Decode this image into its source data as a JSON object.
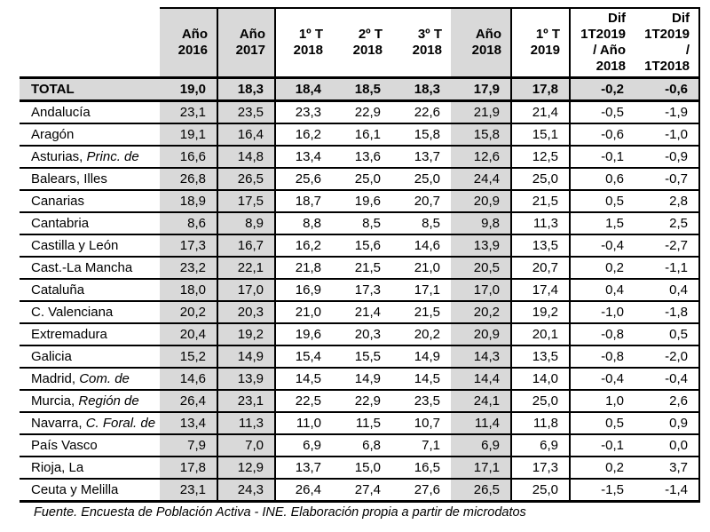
{
  "colors": {
    "shade": "#d9d9d9",
    "border": "#000000",
    "background": "#ffffff"
  },
  "header": {
    "region": "",
    "y2016": "Año\n2016",
    "y2017": "Año\n2017",
    "q1_2018": "1º T\n2018",
    "q2_2018": "2º T\n2018",
    "q3_2018": "3º T\n2018",
    "y2018": "Año\n2018",
    "q1_2019": "1º T\n2019",
    "dif_vs_y2018": "Dif\n1T2019\n/ Año\n2018",
    "dif_vs_q12018": "Dif\n1T2019\n/\n1T2018"
  },
  "chart_data": {
    "type": "table",
    "columns": [
      "",
      "Año 2016",
      "Año 2017",
      "1º T 2018",
      "2º T 2018",
      "3º T 2018",
      "Año 2018",
      "1º T 2019",
      "Dif 1T2019 / Año 2018",
      "Dif 1T2019 / 1T2018"
    ],
    "shaded_columns": [
      "Año 2016",
      "Año 2017",
      "Año 2018"
    ],
    "total_row": {
      "label": "TOTAL",
      "values": [
        "19,0",
        "18,3",
        "18,4",
        "18,5",
        "18,3",
        "17,9",
        "17,8",
        "-0,2",
        "-0,6"
      ]
    },
    "rows": [
      {
        "region": "Andalucía",
        "region_italic": "",
        "values": [
          "23,1",
          "23,5",
          "23,3",
          "22,9",
          "22,6",
          "21,9",
          "21,4",
          "-0,5",
          "-1,9"
        ]
      },
      {
        "region": "Aragón",
        "region_italic": "",
        "values": [
          "19,1",
          "16,4",
          "16,2",
          "16,1",
          "15,8",
          "15,8",
          "15,1",
          "-0,6",
          "-1,0"
        ]
      },
      {
        "region": "Asturias,",
        "region_italic": "Princ. de",
        "values": [
          "16,6",
          "14,8",
          "13,4",
          "13,6",
          "13,7",
          "12,6",
          "12,5",
          "-0,1",
          "-0,9"
        ]
      },
      {
        "region": "Balears, Illes",
        "region_italic": "",
        "values": [
          "26,8",
          "26,5",
          "25,6",
          "25,0",
          "25,0",
          "24,4",
          "25,0",
          "0,6",
          "-0,7"
        ]
      },
      {
        "region": "Canarias",
        "region_italic": "",
        "values": [
          "18,9",
          "17,5",
          "18,7",
          "19,6",
          "20,7",
          "20,9",
          "21,5",
          "0,5",
          "2,8"
        ]
      },
      {
        "region": "Cantabria",
        "region_italic": "",
        "values": [
          "8,6",
          "8,9",
          "8,8",
          "8,5",
          "8,5",
          "9,8",
          "11,3",
          "1,5",
          "2,5"
        ]
      },
      {
        "region": "Castilla y León",
        "region_italic": "",
        "values": [
          "17,3",
          "16,7",
          "16,2",
          "15,6",
          "14,6",
          "13,9",
          "13,5",
          "-0,4",
          "-2,7"
        ]
      },
      {
        "region": "Cast.-La Mancha",
        "region_italic": "",
        "values": [
          "23,2",
          "22,1",
          "21,8",
          "21,5",
          "21,0",
          "20,5",
          "20,7",
          "0,2",
          "-1,1"
        ]
      },
      {
        "region": "Cataluña",
        "region_italic": "",
        "values": [
          "18,0",
          "17,0",
          "16,9",
          "17,3",
          "17,1",
          "17,0",
          "17,4",
          "0,4",
          "0,4"
        ]
      },
      {
        "region": "C. Valenciana",
        "region_italic": "",
        "values": [
          "20,2",
          "20,3",
          "21,0",
          "21,4",
          "21,5",
          "20,2",
          "19,2",
          "-1,0",
          "-1,8"
        ]
      },
      {
        "region": "Extremadura",
        "region_italic": "",
        "values": [
          "20,4",
          "19,2",
          "19,6",
          "20,3",
          "20,2",
          "20,9",
          "20,1",
          "-0,8",
          "0,5"
        ]
      },
      {
        "region": "Galicia",
        "region_italic": "",
        "values": [
          "15,2",
          "14,9",
          "15,4",
          "15,5",
          "14,9",
          "14,3",
          "13,5",
          "-0,8",
          "-2,0"
        ]
      },
      {
        "region": "Madrid,",
        "region_italic": "Com. de",
        "values": [
          "14,6",
          "13,9",
          "14,5",
          "14,9",
          "14,5",
          "14,4",
          "14,0",
          "-0,4",
          "-0,4"
        ]
      },
      {
        "region": "Murcia,",
        "region_italic": "Región de",
        "values": [
          "26,4",
          "23,1",
          "22,5",
          "22,9",
          "23,5",
          "24,1",
          "25,0",
          "1,0",
          "2,6"
        ]
      },
      {
        "region": "Navarra,",
        "region_italic": "C. Foral. de",
        "values": [
          "13,4",
          "11,3",
          "11,0",
          "11,5",
          "10,7",
          "11,4",
          "11,8",
          "0,5",
          "0,9"
        ]
      },
      {
        "region": "País Vasco",
        "region_italic": "",
        "values": [
          "7,9",
          "7,0",
          "6,9",
          "6,8",
          "7,1",
          "6,9",
          "6,9",
          "-0,1",
          "0,0"
        ]
      },
      {
        "region": "Rioja, La",
        "region_italic": "",
        "values": [
          "17,8",
          "12,9",
          "13,7",
          "15,0",
          "16,5",
          "17,1",
          "17,3",
          "0,2",
          "3,7"
        ]
      },
      {
        "region": "Ceuta y Melilla",
        "region_italic": "",
        "values": [
          "23,1",
          "24,3",
          "26,4",
          "27,4",
          "27,6",
          "26,5",
          "25,0",
          "-1,5",
          "-1,4"
        ]
      }
    ]
  },
  "footer": {
    "source": "Fuente. Encuesta de Población Activa - INE. Elaboración propia a partir de microdatos"
  }
}
